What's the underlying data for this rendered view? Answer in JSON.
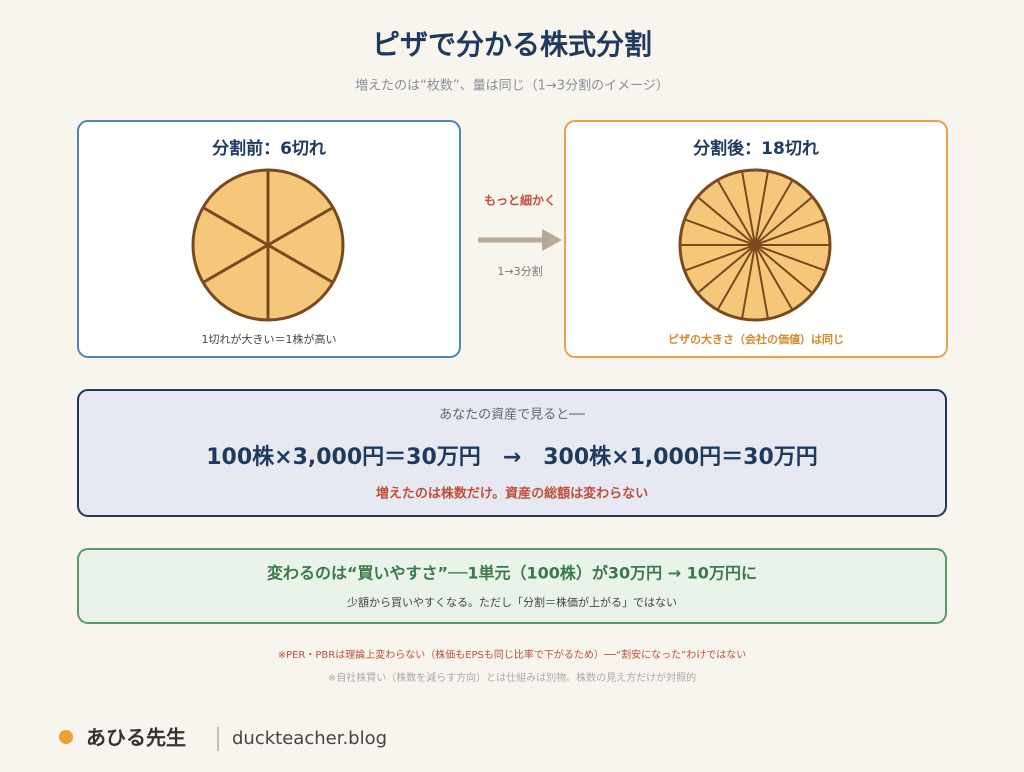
{
  "header": {
    "title": "ピザで分かる株式分割",
    "subtitle": "増えたのは“枚数”、量は同じ（1→3分割のイメージ）"
  },
  "before": {
    "title": "分割前：6切れ",
    "caption": "1切れが大きい＝1株が高い"
  },
  "middle": {
    "label": "もっと細かく",
    "ratio": "1→3分割"
  },
  "after": {
    "title": "分割後：18切れ",
    "caption": "ピザの大きさ（会社の価値）は同じ"
  },
  "asset": {
    "lead": "あなたの資産で見ると──",
    "formula": "100株×3,000円＝30万円　→　300株×1,000円＝30万円",
    "note": "増えたのは株数だけ。資産の総額は変わらない"
  },
  "change": {
    "headline": "変わるのは“買いやすさ”──1単元（100株）が30万円 → 10万円に",
    "detail": "少額から買いやすくなる。ただし「分割＝株価が上がる」ではない"
  },
  "notes": [
    "※PER・PBRは理論上変わらない（株価もEPSも同じ比率で下がるため）──“割安になった”わけではない",
    "※自社株買い（株数を減らす方向）とは仕組みは別物。株数の見え方だけが対照的"
  ],
  "footer": {
    "author": "あひる先生",
    "site": "duckteacher.blog"
  }
}
